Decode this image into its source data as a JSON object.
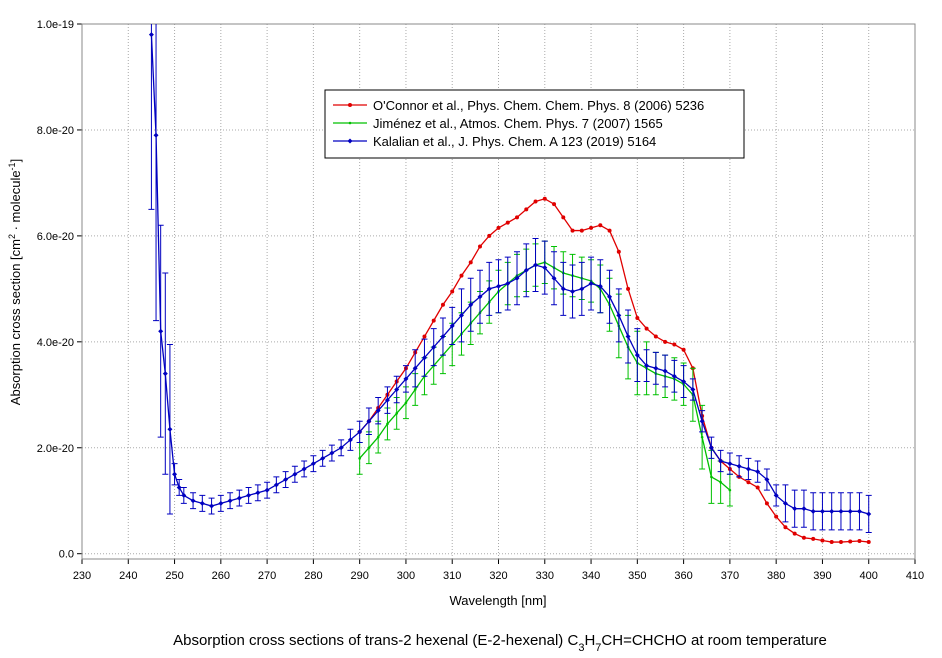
{
  "chart_data": {
    "type": "line",
    "xlabel": "Wavelength [nm]",
    "ylabel_parts": [
      "Absorption cross section [cm",
      "2",
      " · molecule",
      "-1",
      "]"
    ],
    "caption_parts": [
      "Absorption cross sections of trans-2 hexenal (E-2-hexenal) C",
      "3",
      "H",
      "7",
      "CH=CHCHO at room temperature"
    ],
    "xlim": [
      230,
      410
    ],
    "xticks": [
      230,
      240,
      250,
      260,
      270,
      280,
      290,
      300,
      310,
      320,
      330,
      340,
      350,
      360,
      370,
      380,
      390,
      400,
      410
    ],
    "ylim": [
      -1e-21,
      1e-19
    ],
    "yticks": [
      {
        "value": 0,
        "label": "0.0"
      },
      {
        "value": 2e-20,
        "label": "2.0e-20"
      },
      {
        "value": 4e-20,
        "label": "4.0e-20"
      },
      {
        "value": 6e-20,
        "label": "6.0e-20"
      },
      {
        "value": 8e-20,
        "label": "8.0e-20"
      },
      {
        "value": 1e-19,
        "label": "1.0e-19"
      }
    ],
    "grid": true,
    "legend": "upper-center",
    "series": [
      {
        "name": "O'Connor et al., Phys. Chem. Chem. Phys. 8 (2006) 5236",
        "color": "#e00000",
        "marker": "circle",
        "x": [
          290,
          292,
          294,
          296,
          298,
          300,
          302,
          304,
          306,
          308,
          310,
          312,
          314,
          316,
          318,
          320,
          322,
          324,
          326,
          328,
          330,
          332,
          334,
          336,
          338,
          340,
          342,
          344,
          346,
          348,
          350,
          352,
          354,
          356,
          358,
          360,
          362,
          364,
          366,
          368,
          370,
          372,
          374,
          376,
          378,
          380,
          382,
          384,
          386,
          388,
          390,
          392,
          394,
          396,
          398,
          400
        ],
        "values": [
          2.3e-20,
          2.5e-20,
          2.75e-20,
          3e-20,
          3.25e-20,
          3.5e-20,
          3.8e-20,
          4.1e-20,
          4.4e-20,
          4.7e-20,
          4.95e-20,
          5.25e-20,
          5.5e-20,
          5.8e-20,
          6e-20,
          6.15e-20,
          6.25e-20,
          6.35e-20,
          6.5e-20,
          6.65e-20,
          6.7e-20,
          6.6e-20,
          6.35e-20,
          6.1e-20,
          6.1e-20,
          6.15e-20,
          6.2e-20,
          6.1e-20,
          5.7e-20,
          5e-20,
          4.45e-20,
          4.25e-20,
          4.1e-20,
          4e-20,
          3.95e-20,
          3.85e-20,
          3.5e-20,
          2.6e-20,
          2e-20,
          1.75e-20,
          1.6e-20,
          1.45e-20,
          1.35e-20,
          1.25e-20,
          9.5e-21,
          7e-21,
          5e-21,
          3.8e-21,
          3e-21,
          2.8e-21,
          2.5e-21,
          2.2e-21,
          2.2e-21,
          2.3e-21,
          2.4e-21,
          2.2e-21
        ]
      },
      {
        "name": "Jiménez et al., Atmos. Chem. Phys. 7 (2007) 1565",
        "color": "#00c000",
        "marker": "dot",
        "x": [
          290,
          292,
          294,
          296,
          298,
          300,
          302,
          304,
          306,
          308,
          310,
          312,
          314,
          316,
          318,
          320,
          322,
          324,
          326,
          328,
          330,
          332,
          334,
          336,
          338,
          340,
          342,
          344,
          346,
          348,
          350,
          352,
          354,
          356,
          358,
          360,
          362,
          364,
          366,
          368,
          370
        ],
        "values": [
          1.8e-20,
          2e-20,
          2.2e-20,
          2.45e-20,
          2.65e-20,
          2.85e-20,
          3.1e-20,
          3.35e-20,
          3.55e-20,
          3.75e-20,
          3.95e-20,
          4.15e-20,
          4.35e-20,
          4.55e-20,
          4.75e-20,
          4.95e-20,
          5.1e-20,
          5.25e-20,
          5.35e-20,
          5.45e-20,
          5.5e-20,
          5.4e-20,
          5.3e-20,
          5.25e-20,
          5.2e-20,
          5.15e-20,
          5e-20,
          4.7e-20,
          4.3e-20,
          3.9e-20,
          3.6e-20,
          3.5e-20,
          3.4e-20,
          3.35e-20,
          3.3e-20,
          3.2e-20,
          3e-20,
          2.2e-20,
          1.45e-20,
          1.35e-20,
          1.2e-20
        ],
        "errors": [
          3e-21,
          3e-21,
          3e-21,
          3e-21,
          3e-21,
          3e-21,
          3e-21,
          3.5e-21,
          3.5e-21,
          3.5e-21,
          4e-21,
          4e-21,
          4e-21,
          4e-21,
          4e-21,
          4e-21,
          4e-21,
          4e-21,
          4e-21,
          4e-21,
          4e-21,
          4e-21,
          4e-21,
          4e-21,
          4e-21,
          4e-21,
          4.5e-21,
          5e-21,
          6e-21,
          6e-21,
          6e-21,
          5e-21,
          4e-21,
          4e-21,
          4e-21,
          4e-21,
          5e-21,
          6e-21,
          5e-21,
          4e-21,
          3e-21
        ]
      },
      {
        "name": "Kalalian et al., J. Phys. Chem. A 123 (2019) 5164",
        "color": "#0000c0",
        "marker": "diamond",
        "x": [
          245,
          246,
          247,
          248,
          249,
          250,
          251,
          252,
          254,
          256,
          258,
          260,
          262,
          264,
          266,
          268,
          270,
          272,
          274,
          276,
          278,
          280,
          282,
          284,
          286,
          288,
          290,
          292,
          294,
          296,
          298,
          300,
          302,
          304,
          306,
          308,
          310,
          312,
          314,
          316,
          318,
          320,
          322,
          324,
          326,
          328,
          330,
          332,
          334,
          336,
          338,
          340,
          342,
          344,
          346,
          348,
          350,
          352,
          354,
          356,
          358,
          360,
          362,
          364,
          366,
          368,
          370,
          372,
          374,
          376,
          378,
          380,
          382,
          384,
          386,
          388,
          390,
          392,
          394,
          396,
          398,
          400
        ],
        "values": [
          9.8e-20,
          7.9e-20,
          4.2e-20,
          3.4e-20,
          2.35e-20,
          1.5e-20,
          1.25e-20,
          1.1e-20,
          1e-20,
          9.5e-21,
          9e-21,
          9.5e-21,
          1e-20,
          1.05e-20,
          1.1e-20,
          1.15e-20,
          1.2e-20,
          1.3e-20,
          1.4e-20,
          1.5e-20,
          1.6e-20,
          1.7e-20,
          1.8e-20,
          1.9e-20,
          2e-20,
          2.15e-20,
          2.3e-20,
          2.5e-20,
          2.7e-20,
          2.9e-20,
          3.1e-20,
          3.3e-20,
          3.5e-20,
          3.7e-20,
          3.9e-20,
          4.1e-20,
          4.3e-20,
          4.5e-20,
          4.7e-20,
          4.85e-20,
          5e-20,
          5.05e-20,
          5.1e-20,
          5.2e-20,
          5.35e-20,
          5.45e-20,
          5.4e-20,
          5.2e-20,
          5e-20,
          4.95e-20,
          5e-20,
          5.1e-20,
          5.05e-20,
          4.85e-20,
          4.5e-20,
          4.1e-20,
          3.75e-20,
          3.55e-20,
          3.5e-20,
          3.45e-20,
          3.35e-20,
          3.25e-20,
          3.1e-20,
          2.5e-20,
          2e-20,
          1.75e-20,
          1.7e-20,
          1.65e-20,
          1.6e-20,
          1.55e-20,
          1.4e-20,
          1.1e-20,
          9.5e-21,
          8.5e-21,
          8.5e-21,
          8e-21,
          8e-21,
          8e-21,
          8e-21,
          8e-21,
          8e-21,
          7.5e-21
        ],
        "errors": [
          3.3e-20,
          3.5e-20,
          2e-20,
          1.9e-20,
          1.6e-20,
          2e-21,
          1.5e-21,
          1.5e-21,
          1.5e-21,
          1.5e-21,
          1.5e-21,
          1.5e-21,
          1.5e-21,
          1.5e-21,
          1.5e-21,
          1.5e-21,
          1.5e-21,
          1.5e-21,
          1.5e-21,
          1.5e-21,
          1.5e-21,
          1.5e-21,
          1.5e-21,
          1.5e-21,
          1.5e-21,
          2e-21,
          2e-21,
          2.5e-21,
          2.5e-21,
          2.5e-21,
          2.5e-21,
          2.5e-21,
          3.5e-21,
          3.5e-21,
          3.5e-21,
          3.5e-21,
          3.5e-21,
          5e-21,
          5e-21,
          5e-21,
          5e-21,
          5e-21,
          5e-21,
          5e-21,
          5e-21,
          5e-21,
          5e-21,
          5e-21,
          5e-21,
          5e-21,
          5e-21,
          5e-21,
          5e-21,
          5e-21,
          5e-21,
          5e-21,
          5e-21,
          3e-21,
          3e-21,
          3e-21,
          3e-21,
          3e-21,
          2e-21,
          2e-21,
          2e-21,
          2e-21,
          2e-21,
          2e-21,
          2e-21,
          2e-21,
          2e-21,
          2e-21,
          3.5e-21,
          3.5e-21,
          3.5e-21,
          3.5e-21,
          3.5e-21,
          3.5e-21,
          3.5e-21,
          3.5e-21,
          3.5e-21,
          3.5e-21
        ]
      }
    ]
  }
}
